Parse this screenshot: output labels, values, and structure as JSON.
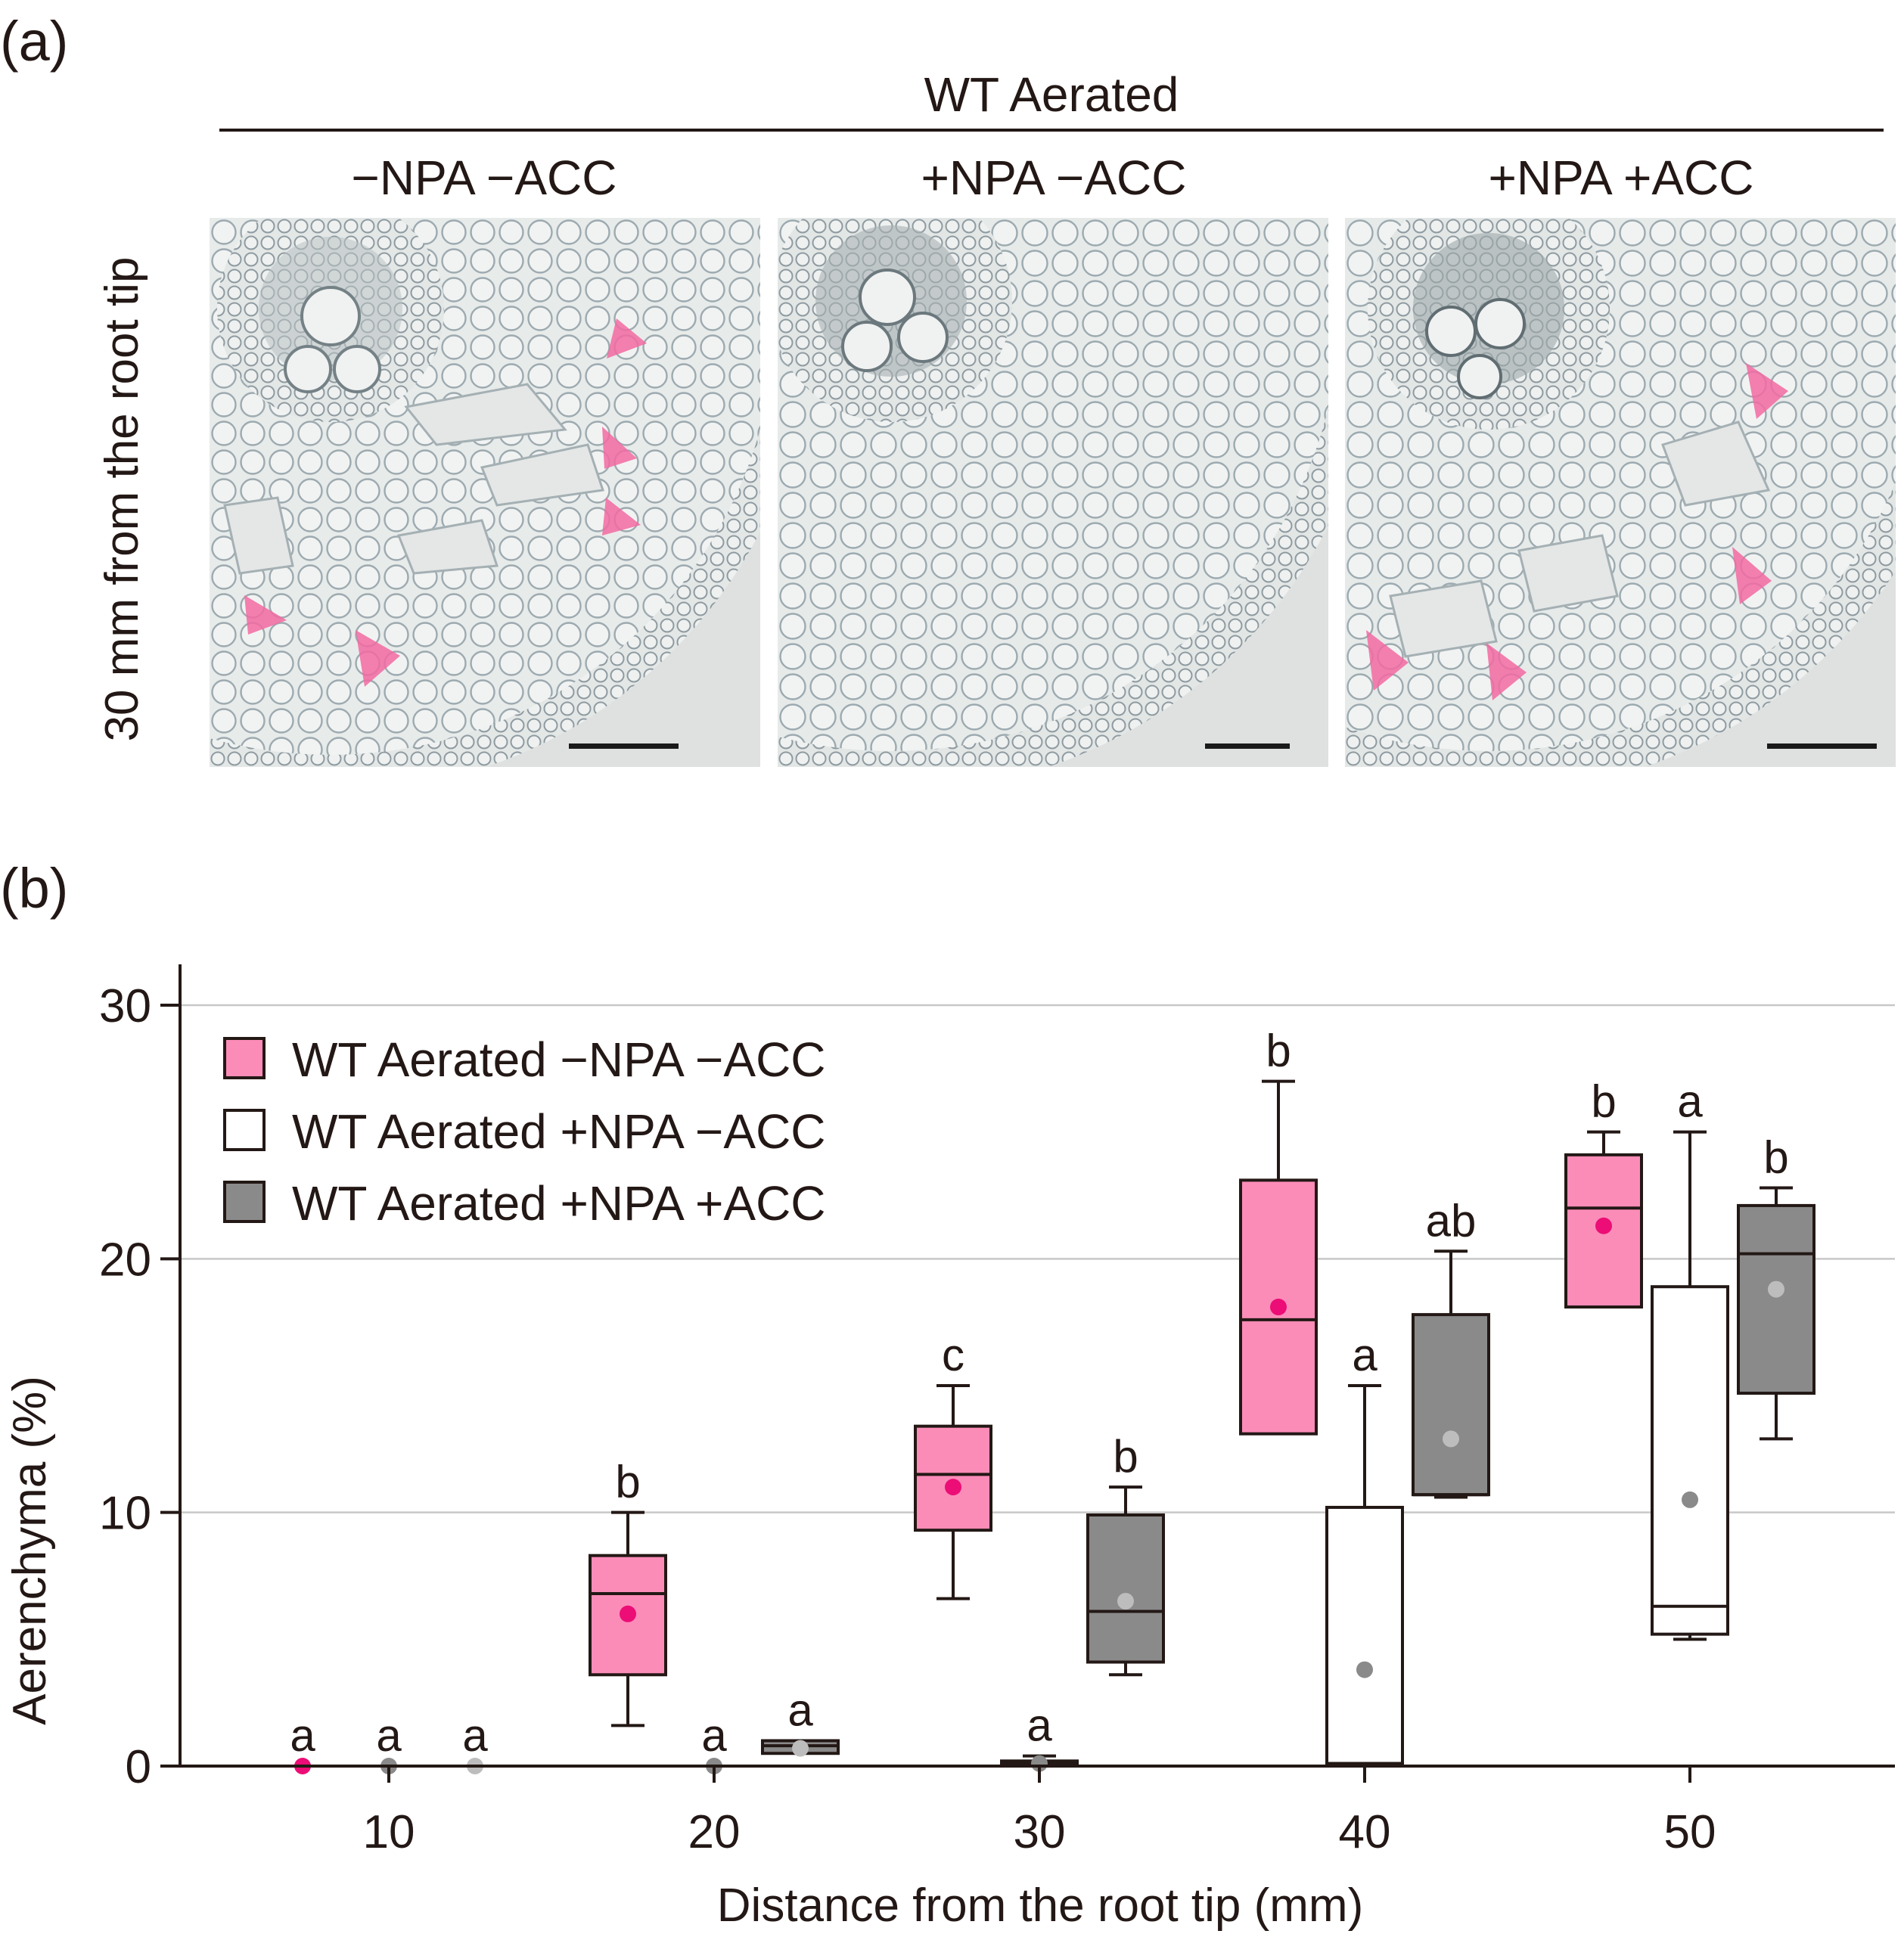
{
  "panel_a": {
    "label": "(a)",
    "group_title": "WT Aerated",
    "side_label": "30 mm from the root tip",
    "conditions": [
      "−NPA −ACC",
      "+NPA −ACC",
      "+NPA +ACC"
    ]
  },
  "panel_b": {
    "label": "(b)"
  },
  "colors": {
    "pink": "#fb8cb8",
    "pink_mean": "#ec0d76",
    "gray": "#8a8a8a",
    "gray_mean": "#bdbdbd",
    "white": "#ffffff",
    "stroke": "#231815",
    "arrow": "#f26aa2"
  },
  "chart_data": {
    "type": "box",
    "title": "",
    "xlabel": "Distance from the root tip (mm)",
    "ylabel": "Aerenchyma (%)",
    "categories": [
      10,
      20,
      30,
      40,
      50
    ],
    "ylim": [
      0,
      30
    ],
    "yticks": [
      0,
      10,
      20,
      30
    ],
    "grid": true,
    "legend_position": "top-left",
    "series": [
      {
        "name": "WT Aerated −NPA −ACC",
        "fill": "pink",
        "boxes": [
          {
            "min": 0,
            "q1": 0,
            "median": 0,
            "q3": 0,
            "max": 0,
            "mean": 0,
            "letter": "a"
          },
          {
            "min": 1.6,
            "q1": 3.6,
            "median": 6.8,
            "q3": 8.3,
            "max": 10,
            "mean": 6.0,
            "letter": "b"
          },
          {
            "min": 6.6,
            "q1": 9.3,
            "median": 11.5,
            "q3": 13.4,
            "max": 15,
            "mean": 11.0,
            "letter": "c"
          },
          {
            "min": 13.1,
            "q1": 13.1,
            "median": 17.6,
            "q3": 23.1,
            "max": 27,
            "mean": 18.1,
            "letter": "b"
          },
          {
            "min": 18.1,
            "q1": 18.1,
            "median": 22.0,
            "q3": 24.1,
            "max": 25,
            "mean": 21.3,
            "letter": "b"
          }
        ]
      },
      {
        "name": "WT Aerated +NPA −ACC",
        "fill": "white",
        "boxes": [
          {
            "min": 0,
            "q1": 0,
            "median": 0,
            "q3": 0,
            "max": 0,
            "mean": 0,
            "letter": "a"
          },
          {
            "min": 0,
            "q1": 0,
            "median": 0,
            "q3": 0,
            "max": 0,
            "mean": 0,
            "letter": "a"
          },
          {
            "min": 0,
            "q1": 0,
            "median": 0.1,
            "q3": 0.2,
            "max": 0.4,
            "mean": 0.1,
            "letter": "a"
          },
          {
            "min": 0,
            "q1": 0.1,
            "median": 0.1,
            "q3": 10.2,
            "max": 15,
            "mean": 3.8,
            "letter": "a"
          },
          {
            "min": 5.0,
            "q1": 5.2,
            "median": 6.3,
            "q3": 18.9,
            "max": 25,
            "mean": 10.5,
            "letter": "a"
          }
        ]
      },
      {
        "name": "WT Aerated +NPA +ACC",
        "fill": "gray",
        "boxes": [
          {
            "min": 0,
            "q1": 0,
            "median": 0,
            "q3": 0,
            "max": 0,
            "mean": 0,
            "letter": "a"
          },
          {
            "min": 0.5,
            "q1": 0.5,
            "median": 0.8,
            "q3": 1.0,
            "max": 1.0,
            "mean": 0.7,
            "letter": "a"
          },
          {
            "min": 3.6,
            "q1": 4.1,
            "median": 6.1,
            "q3": 9.9,
            "max": 11,
            "mean": 6.5,
            "letter": "b"
          },
          {
            "min": 10.6,
            "q1": 10.7,
            "median": 10.7,
            "q3": 17.8,
            "max": 20.3,
            "mean": 12.9,
            "letter": "ab"
          },
          {
            "min": 12.9,
            "q1": 14.7,
            "median": 20.2,
            "q3": 22.1,
            "max": 22.8,
            "mean": 18.8,
            "letter": "b"
          }
        ]
      }
    ]
  }
}
